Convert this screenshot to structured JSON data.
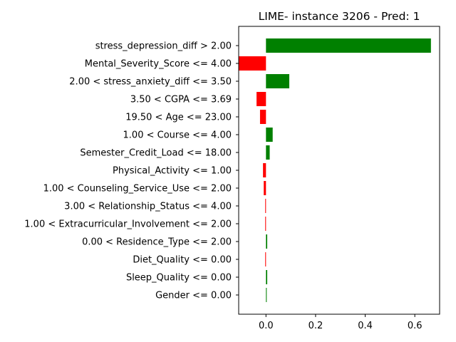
{
  "chart_data": {
    "type": "bar",
    "orientation": "horizontal",
    "title": "LIME- instance 3206 - Pred: 1",
    "xlabel": "",
    "ylabel": "",
    "xlim": [
      -0.11,
      0.7
    ],
    "xticks": [
      0.0,
      0.2,
      0.4,
      0.6
    ],
    "xtick_labels": [
      "0.0",
      "0.2",
      "0.4",
      "0.6"
    ],
    "grid": false,
    "legend": "none",
    "colors": {
      "positive": "#008000",
      "negative": "#ff0000"
    },
    "categories": [
      "stress_depression_diff > 2.00",
      "Mental_Severity_Score <= 4.00",
      "2.00 < stress_anxiety_diff <= 3.50",
      "3.50 < CGPA <= 3.69",
      "19.50 < Age <= 23.00",
      "1.00 < Course <= 4.00",
      "Semester_Credit_Load <= 18.00",
      "Physical_Activity <= 1.00",
      "1.00 < Counseling_Service_Use <= 2.00",
      "3.00 < Relationship_Status <= 4.00",
      "1.00 < Extracurricular_Involvement <= 2.00",
      "0.00 < Residence_Type <= 2.00",
      "Diet_Quality <= 0.00",
      "Sleep_Quality <= 0.00",
      "Gender <= 0.00"
    ],
    "values": [
      0.665,
      -0.11,
      0.094,
      -0.038,
      -0.024,
      0.027,
      0.015,
      -0.012,
      -0.009,
      -0.003,
      -0.003,
      0.005,
      -0.003,
      0.005,
      0.003
    ]
  }
}
